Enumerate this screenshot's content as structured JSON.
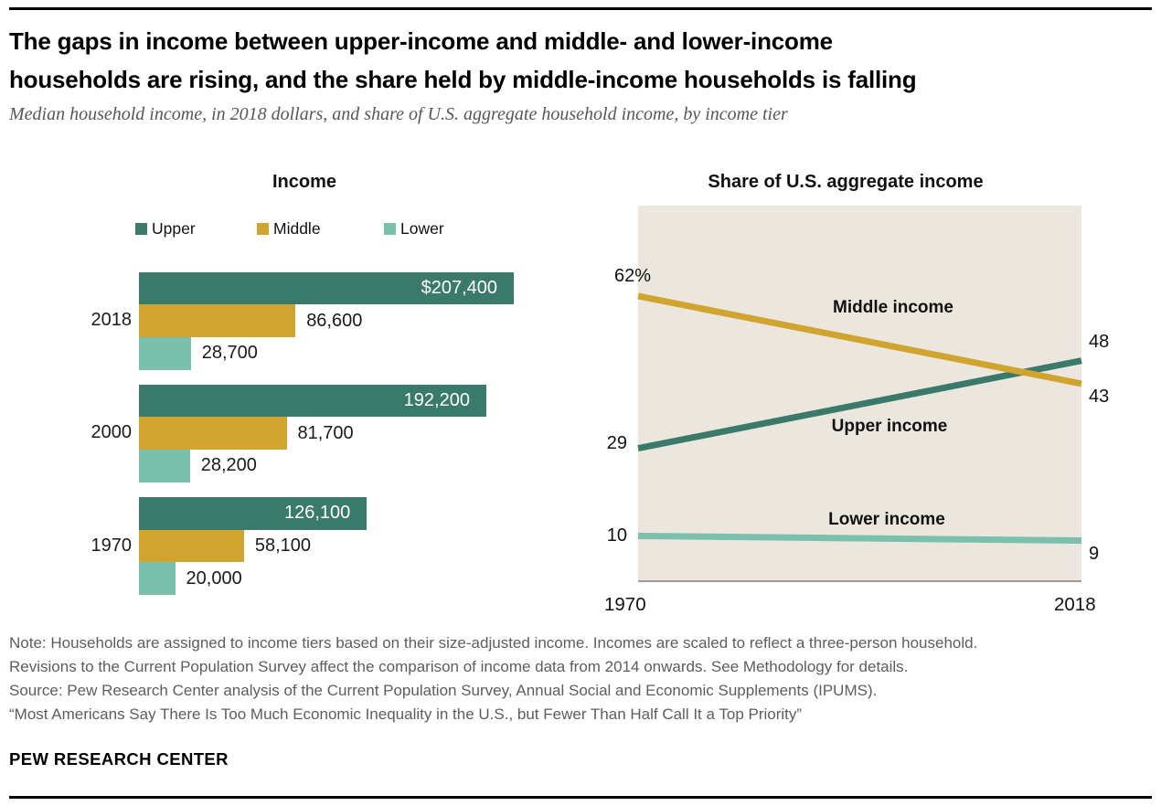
{
  "header": {
    "title_line1": "The gaps in income between upper-income and middle- and lower-income",
    "title_line2": "households are rising, and the share held by middle-income households is falling",
    "subtitle": "Median household income, in 2018 dollars, and share of U.S. aggregate household income, by income tier"
  },
  "colors": {
    "upper": "#3a7a6a",
    "middle": "#d1a42f",
    "lower": "#7bc0ac",
    "plot_background": "#ebe7df",
    "axis_line": "#9b9b9b",
    "note_gray": "#5d5d5d"
  },
  "chart_data": [
    {
      "type": "bar",
      "title": "Income",
      "orientation": "horizontal",
      "legend": [
        {
          "label": "Upper",
          "color": "#3a7a6a"
        },
        {
          "label": "Middle",
          "color": "#d1a42f"
        },
        {
          "label": "Lower",
          "color": "#7bc0ac"
        }
      ],
      "categories": [
        "2018",
        "2000",
        "1970"
      ],
      "series": [
        {
          "name": "Upper",
          "color": "#3a7a6a",
          "values": [
            207400,
            192200,
            126100
          ],
          "labels": [
            "$207,400",
            "192,200",
            "126,100"
          ],
          "label_inside": true
        },
        {
          "name": "Middle",
          "color": "#d1a42f",
          "values": [
            86600,
            81700,
            58100
          ],
          "labels": [
            "86,600",
            "81,700",
            "58,100"
          ],
          "label_inside": false
        },
        {
          "name": "Lower",
          "color": "#7bc0ac",
          "values": [
            28700,
            28200,
            20000
          ],
          "labels": [
            "28,700",
            "28,200",
            "20,000"
          ],
          "label_inside": false
        }
      ],
      "xlim": [
        0,
        207400
      ]
    },
    {
      "type": "line",
      "title": "Share of U.S. aggregate income",
      "x": [
        1970,
        2018
      ],
      "x_tick_labels": [
        "1970",
        "2018"
      ],
      "ylim": [
        0,
        81.6
      ],
      "grid": false,
      "series": [
        {
          "name": "Middle income",
          "color": "#d1a42f",
          "values": [
            62,
            43
          ],
          "start_label": "62%",
          "end_label": "43"
        },
        {
          "name": "Upper income",
          "color": "#3a7a6a",
          "values": [
            29,
            48
          ],
          "start_label": "29",
          "end_label": "48"
        },
        {
          "name": "Lower income",
          "color": "#7bc0ac",
          "values": [
            10,
            9
          ],
          "start_label": "10",
          "end_label": "9"
        }
      ]
    }
  ],
  "footer": {
    "lines": [
      "Note: Households are assigned to income tiers based on their size-adjusted income. Incomes are scaled to reflect a three-person household.",
      "Revisions to the Current Population Survey affect the comparison of income data from 2014 onwards. See Methodology for details.",
      "Source: Pew Research Center analysis of the Current Population Survey, Annual Social and Economic Supplements (IPUMS).",
      "“Most Americans Say There Is Too Much Economic Inequality in the U.S., but Fewer Than Half Call It a Top Priority”"
    ],
    "brand": "PEW RESEARCH CENTER"
  }
}
